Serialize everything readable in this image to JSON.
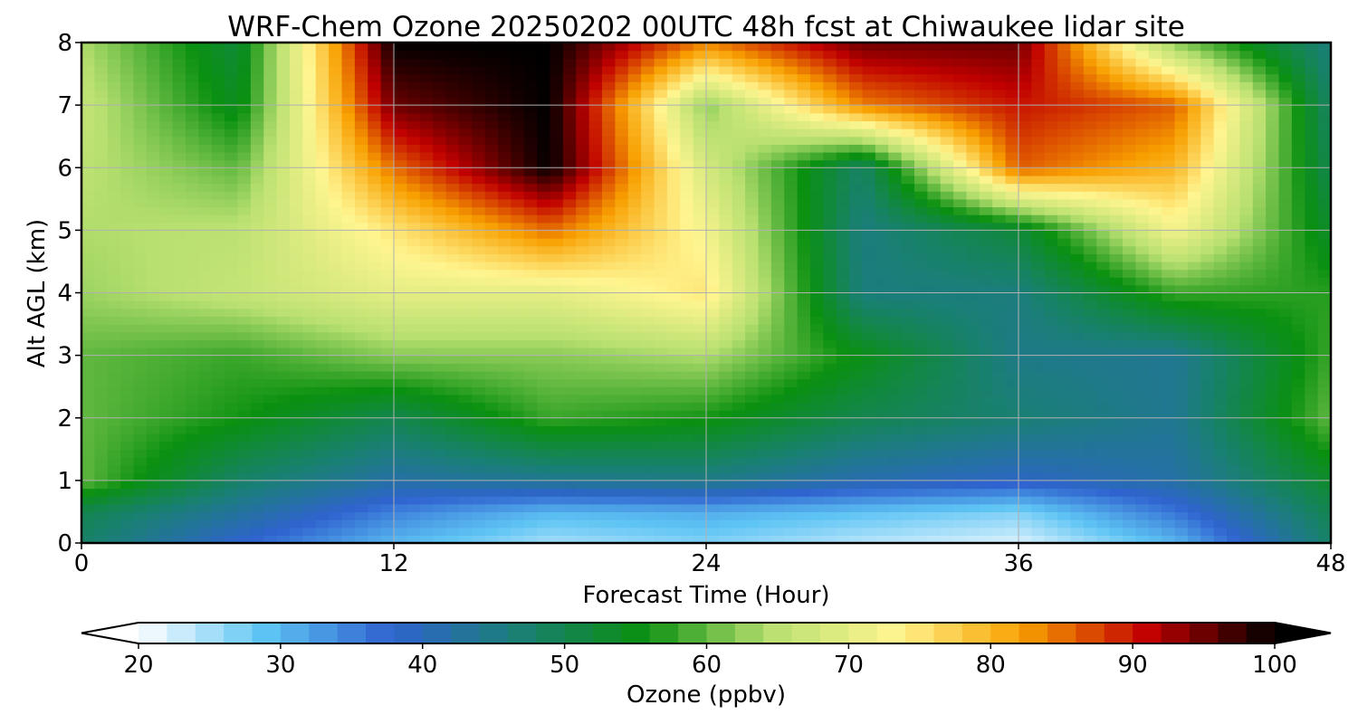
{
  "chart_data": {
    "type": "heatmap",
    "title": "WRF-Chem Ozone  20250202 00UTC 48h fcst at Chiwaukee lidar site",
    "xlabel": "Forecast Time (Hour)",
    "ylabel": "Alt AGL (km)",
    "xlim": [
      0,
      48
    ],
    "ylim": [
      0,
      8
    ],
    "xticks": [
      0,
      12,
      24,
      36,
      48
    ],
    "yticks": [
      0,
      1,
      2,
      3,
      4,
      5,
      6,
      7,
      8
    ],
    "grid": true,
    "x": [
      0,
      6,
      12,
      18,
      24,
      30,
      36,
      42,
      48
    ],
    "y": [
      0,
      0.5,
      1,
      2,
      3,
      4,
      5,
      6,
      7,
      8
    ],
    "values": [
      [
        48,
        38,
        30,
        25,
        27,
        24,
        22,
        30,
        48
      ],
      [
        50,
        43,
        35,
        30,
        31,
        29,
        27,
        36,
        50
      ],
      [
        60,
        48,
        42,
        44,
        45,
        41,
        39,
        42,
        53
      ],
      [
        60,
        56,
        50,
        58,
        56,
        50,
        47,
        44,
        60
      ],
      [
        60,
        58,
        62,
        62,
        64,
        55,
        45,
        44,
        58
      ],
      [
        63,
        66,
        70,
        70,
        75,
        46,
        46,
        58,
        57
      ],
      [
        64,
        65,
        75,
        85,
        72,
        46,
        52,
        72,
        53
      ],
      [
        65,
        60,
        85,
        100,
        68,
        48,
        86,
        80,
        50
      ],
      [
        66,
        54,
        95,
        100,
        62,
        84,
        90,
        86,
        48
      ],
      [
        64,
        52,
        100,
        100,
        84,
        95,
        95,
        62,
        46
      ]
    ],
    "colorbar": {
      "label": "Ozone  (ppbv)",
      "min": 20,
      "max": 100,
      "ticks": [
        20,
        30,
        40,
        50,
        60,
        70,
        80,
        90,
        100
      ],
      "extend": "both",
      "colors": [
        "#ffffff",
        "#5ec4f4",
        "#2f63cf",
        "#1a7f76",
        "#0a9010",
        "#b8e070",
        "#fff590",
        "#f8a000",
        "#c00000",
        "#000000"
      ]
    }
  }
}
